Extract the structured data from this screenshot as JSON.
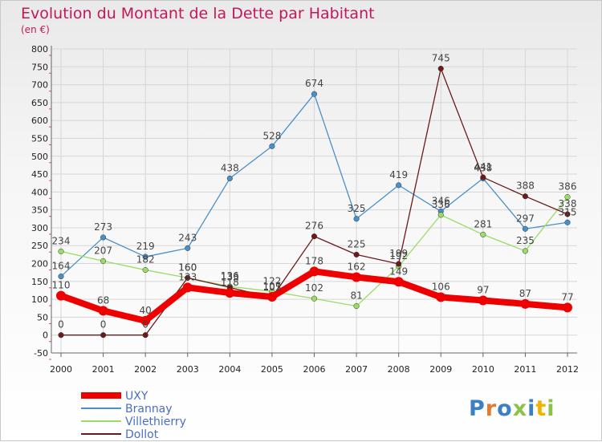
{
  "chart_data": {
    "type": "line",
    "title": "Evolution du Montant de la Dette par Habitant",
    "subtitle": "(en €)",
    "x": [
      "2000",
      "2001",
      "2002",
      "2003",
      "2004",
      "2005",
      "2006",
      "2007",
      "2008",
      "2009",
      "2010",
      "2011",
      "2012"
    ],
    "yticks": [
      800,
      750,
      700,
      650,
      600,
      550,
      500,
      450,
      400,
      350,
      300,
      250,
      200,
      150,
      100,
      50,
      0,
      -50
    ],
    "ylim": [
      -50,
      800
    ],
    "grid": true,
    "legend_position": "bottom-left",
    "series": [
      {
        "name": "UXY",
        "color": "#ee0000",
        "values": [
          110,
          68,
          40,
          133,
          118,
          107,
          178,
          162,
          149,
          106,
          97,
          87,
          77
        ]
      },
      {
        "name": "Brannay",
        "color": "#4a90c8",
        "values": [
          164,
          273,
          219,
          243,
          438,
          528,
          674,
          325,
          419,
          346,
          438,
          297,
          315
        ]
      },
      {
        "name": "Villethierry",
        "color": "#99dd66",
        "values": [
          234,
          207,
          182,
          160,
          136,
          122,
          102,
          81,
          192,
          336,
          281,
          235,
          386
        ]
      },
      {
        "name": "Dollot",
        "color": "#6b1a1a",
        "values": [
          0,
          0,
          0,
          160,
          133,
          105,
          276,
          225,
          199,
          745,
          441,
          388,
          338
        ]
      }
    ]
  },
  "logo": {
    "text": "Proxiti",
    "colors": [
      "#3b7fc4",
      "#e8792b",
      "#3b7fc4",
      "#8bc34a",
      "#3b7fc4",
      "#f0b400",
      "#8bc34a"
    ]
  }
}
